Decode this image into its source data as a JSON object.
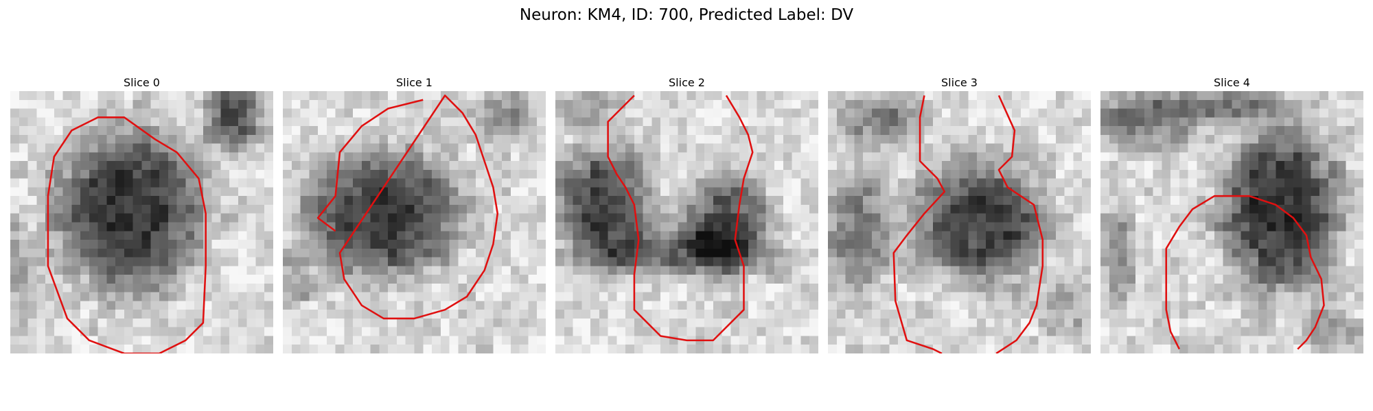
{
  "title": "Neuron: KM4, ID: 700, Predicted Label: DV",
  "contour_color": "#e01010",
  "panels": [
    {
      "label": "Slice 0"
    },
    {
      "label": "Slice 1"
    },
    {
      "label": "Slice 2"
    },
    {
      "label": "Slice 3"
    },
    {
      "label": "Slice 4"
    }
  ]
}
